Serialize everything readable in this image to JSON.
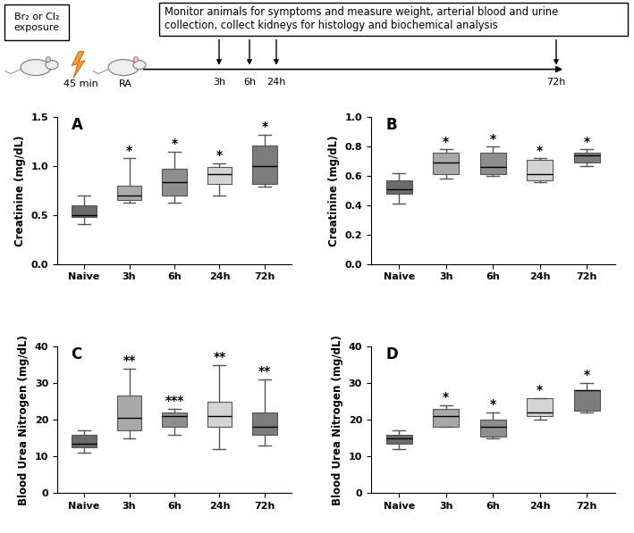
{
  "diagram": {
    "exposure_box": "Br₂ or Cl₂\nexposure",
    "monitor_box": "Monitor animals for symptoms and measure weight, arterial blood and urine\ncollection, collect kidneys for histology and biochemical analysis",
    "duration": "45 min",
    "recovery": "RA",
    "timepoints": [
      "3h",
      "6h",
      "24h",
      "72h"
    ]
  },
  "chart_data": [
    {
      "type": "box",
      "title": "A",
      "y_label": "Creatinine (mg/dL)",
      "categories": [
        "Naive",
        "3h",
        "6h",
        "24h",
        "72h"
      ],
      "whisker_low": [
        0.41,
        0.63,
        0.63,
        0.7,
        0.79
      ],
      "q1": [
        0.48,
        0.65,
        0.7,
        0.82,
        0.82
      ],
      "median": [
        0.5,
        0.7,
        0.84,
        0.92,
        1.0
      ],
      "q3": [
        0.6,
        0.8,
        0.97,
        0.99,
        1.21
      ],
      "whisker_high": [
        0.7,
        1.08,
        1.15,
        1.03,
        1.32
      ],
      "annotations": [
        null,
        "*",
        "*",
        "*",
        "*"
      ],
      "colors": [
        "#6b6b6b",
        "#a9a9a9",
        "#8e8e8e",
        "#d4d4d4",
        "#7c7c7c"
      ],
      "ylim": [
        0,
        1.5
      ],
      "yticks": [
        {
          "value": 0,
          "label": "0.0"
        },
        0.5,
        {
          "value": 1,
          "label": "1.0"
        },
        1.5
      ]
    },
    {
      "type": "box",
      "title": "B",
      "y_label": "Creatinine (mg/dL)",
      "categories": [
        "Naive",
        "3h",
        "6h",
        "24h",
        "72h"
      ],
      "whisker_low": [
        0.41,
        0.58,
        0.6,
        0.56,
        0.67
      ],
      "q1": [
        0.48,
        0.61,
        0.61,
        0.57,
        0.69
      ],
      "median": [
        0.51,
        0.69,
        0.66,
        0.61,
        0.74
      ],
      "q3": [
        0.57,
        0.76,
        0.76,
        0.71,
        0.76
      ],
      "whisker_high": [
        0.62,
        0.78,
        0.8,
        0.72,
        0.78
      ],
      "annotations": [
        null,
        "*",
        "*",
        "*",
        "*"
      ],
      "colors": [
        "#6b6b6b",
        "#a9a9a9",
        "#8e8e8e",
        "#d4d4d4",
        "#7c7c7c"
      ],
      "ylim": [
        0,
        1
      ],
      "yticks": [
        {
          "value": 0,
          "label": "0.0"
        },
        0.2,
        0.4,
        0.6,
        0.8,
        {
          "value": 1,
          "label": "1.0"
        }
      ]
    },
    {
      "type": "box",
      "title": "C",
      "y_label": "Blood Urea Nitrogen (mg/dL)",
      "categories": [
        "Naive",
        "3h",
        "6h",
        "24h",
        "72h"
      ],
      "whisker_low": [
        11,
        15,
        16,
        12,
        13
      ],
      "q1": [
        12.5,
        17,
        18,
        18,
        16
      ],
      "median": [
        13.5,
        20.5,
        21,
        21,
        18
      ],
      "q3": [
        16,
        26.5,
        22,
        25,
        22
      ],
      "whisker_high": [
        17,
        34,
        23,
        35,
        31
      ],
      "annotations": [
        null,
        "**",
        "***",
        "**",
        "**"
      ],
      "colors": [
        "#6b6b6b",
        "#a9a9a9",
        "#8e8e8e",
        "#d4d4d4",
        "#7c7c7c"
      ],
      "ylim": [
        0,
        40
      ],
      "yticks": [
        0,
        10,
        20,
        30,
        40
      ]
    },
    {
      "type": "box",
      "title": "D",
      "y_label": "Blood Urea Nitrogen (mg/dL)",
      "categories": [
        "Naive",
        "3h",
        "6h",
        "24h",
        "72h"
      ],
      "whisker_low": [
        12,
        18,
        15,
        20,
        22
      ],
      "q1": [
        13.5,
        18,
        15.5,
        21,
        22.5
      ],
      "median": [
        15,
        21,
        18,
        22,
        28
      ],
      "q3": [
        16,
        23,
        20,
        26,
        28
      ],
      "whisker_high": [
        17,
        24,
        22,
        26,
        30
      ],
      "annotations": [
        null,
        "*",
        "*",
        "*",
        "*"
      ],
      "colors": [
        "#6b6b6b",
        "#a9a9a9",
        "#8e8e8e",
        "#d4d4d4",
        "#7c7c7c"
      ],
      "ylim": [
        0,
        40
      ],
      "yticks": [
        0,
        10,
        20,
        30,
        40
      ]
    }
  ]
}
